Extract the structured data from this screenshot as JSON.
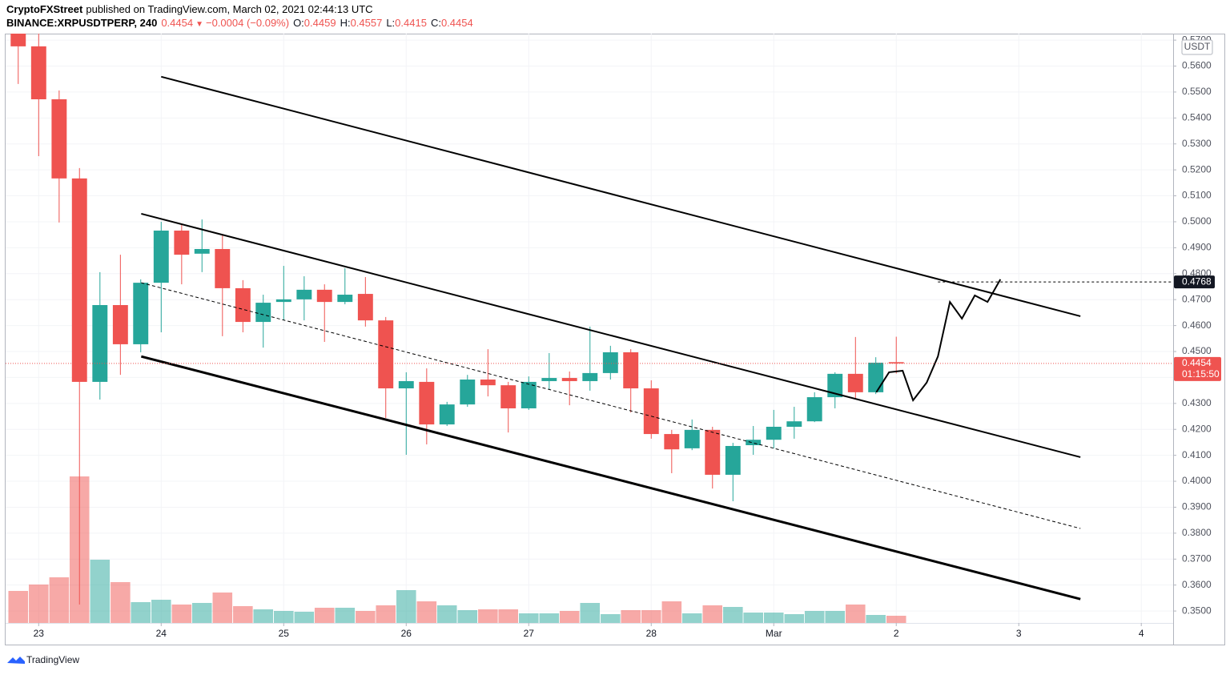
{
  "header": {
    "author": "CryptoFXStreet",
    "published": "published on TradingView.com, March 02, 2021 02:44:13 UTC",
    "symbol": "BINANCE:XRPUSDTPERP, 240",
    "last": "0.4454",
    "arrow": "▼",
    "change": "−0.0004 (−0.09%)",
    "ohlc": [
      {
        "key": "O:",
        "value": "0.4459"
      },
      {
        "key": "H:",
        "value": "0.4557"
      },
      {
        "key": "L:",
        "value": "0.4415"
      },
      {
        "key": "C:",
        "value": "0.4454"
      }
    ]
  },
  "footer": {
    "brand": "TradingView"
  },
  "chart_data": {
    "type": "candlestick",
    "currency": "USDT",
    "up_color": "#26a69a",
    "down_color": "#ef5350",
    "grid": true,
    "x": [
      22.833,
      23,
      23.167,
      23.333,
      23.5,
      23.667,
      23.833,
      24,
      24.167,
      24.333,
      24.5,
      24.667,
      24.833,
      25,
      25.167,
      25.333,
      25.5,
      25.667,
      25.833,
      26,
      26.167,
      26.333,
      26.5,
      26.667,
      26.833,
      27,
      27.167,
      27.333,
      27.5,
      27.667,
      27.833,
      28,
      28.167,
      28.333,
      28.5,
      28.667,
      28.833,
      29,
      29.167,
      29.333,
      29.5,
      29.667,
      29.833,
      30
    ],
    "open": [
      0.575,
      0.5676,
      0.5472,
      0.5167,
      0.4383,
      0.4679,
      0.4528,
      0.4765,
      0.4966,
      0.4877,
      0.4895,
      0.4744,
      0.4614,
      0.4691,
      0.4701,
      0.4738,
      0.4691,
      0.4722,
      0.462,
      0.4358,
      0.4383,
      0.4219,
      0.4296,
      0.4392,
      0.437,
      0.4281,
      0.4386,
      0.4398,
      0.4386,
      0.4417,
      0.4497,
      0.4358,
      0.4182,
      0.4127,
      0.4198,
      0.4025,
      0.4139,
      0.416,
      0.421,
      0.4231,
      0.4324,
      0.4414,
      0.4343,
      0.4459
    ],
    "high": [
      0.578,
      0.573,
      0.5506,
      0.5207,
      0.4806,
      0.4873,
      0.4778,
      0.5,
      0.4991,
      0.5009,
      0.4951,
      0.4775,
      0.4719,
      0.483,
      0.479,
      0.4759,
      0.4821,
      0.4787,
      0.4633,
      0.442,
      0.4435,
      0.4306,
      0.441,
      0.4509,
      0.4383,
      0.4404,
      0.4494,
      0.4423,
      0.4596,
      0.4522,
      0.4509,
      0.4389,
      0.4198,
      0.4238,
      0.421,
      0.4148,
      0.4213,
      0.4275,
      0.4287,
      0.4343,
      0.442,
      0.4556,
      0.4478,
      0.4557
    ],
    "low": [
      0.5531,
      0.5253,
      0.4997,
      0.3525,
      0.4315,
      0.441,
      0.4497,
      0.4574,
      0.4759,
      0.4806,
      0.4559,
      0.4574,
      0.4515,
      0.462,
      0.462,
      0.4537,
      0.4682,
      0.4596,
      0.4244,
      0.4102,
      0.4142,
      0.4213,
      0.4287,
      0.4327,
      0.4188,
      0.4275,
      0.4352,
      0.4293,
      0.4349,
      0.4392,
      0.4265,
      0.4164,
      0.4031,
      0.412,
      0.3972,
      0.3923,
      0.4102,
      0.4127,
      0.4164,
      0.4228,
      0.4281,
      0.4318,
      0.4336,
      0.4415
    ],
    "close": [
      0.5676,
      0.5472,
      0.5167,
      0.4383,
      0.4679,
      0.4528,
      0.4765,
      0.4966,
      0.4873,
      0.4895,
      0.4744,
      0.4614,
      0.4688,
      0.4701,
      0.4738,
      0.4691,
      0.4719,
      0.462,
      0.4358,
      0.4386,
      0.4219,
      0.4296,
      0.4392,
      0.437,
      0.4281,
      0.4383,
      0.4398,
      0.4386,
      0.4417,
      0.4497,
      0.4358,
      0.4182,
      0.4123,
      0.4198,
      0.4025,
      0.4136,
      0.416,
      0.421,
      0.4231,
      0.4324,
      0.4414,
      0.4343,
      0.4457,
      0.4454
    ],
    "volume": [
      40,
      48,
      57,
      183,
      79,
      51,
      26,
      29,
      23,
      25,
      38,
      21,
      17,
      15,
      14,
      19,
      19,
      15,
      22,
      41,
      27,
      22,
      16,
      17,
      17,
      12,
      12,
      15,
      25,
      11,
      16,
      16,
      27,
      12,
      22,
      20,
      13,
      13,
      11,
      15,
      15,
      23,
      10,
      9
    ],
    "vlim": [
      0,
      736
    ],
    "xlim": [
      22.73,
      32.26
    ],
    "xticks": [
      23,
      24,
      25,
      26,
      27,
      28,
      {
        "value": 29,
        "label": "Mar"
      },
      {
        "value": 30,
        "label": "2"
      },
      {
        "value": 31,
        "label": "3"
      },
      {
        "value": 32,
        "label": "4"
      }
    ],
    "ylim": [
      0.3454,
      0.5725
    ],
    "yticks": [
      {
        "value": 0.35,
        "label": "0.3500"
      },
      {
        "value": 0.36,
        "label": "0.3600"
      },
      {
        "value": 0.37,
        "label": "0.3700"
      },
      {
        "value": 0.38,
        "label": "0.3800"
      },
      {
        "value": 0.39,
        "label": "0.3900"
      },
      {
        "value": 0.4,
        "label": "0.4000"
      },
      {
        "value": 0.41,
        "label": "0.4100"
      },
      {
        "value": 0.42,
        "label": "0.4200"
      },
      {
        "value": 0.43,
        "label": "0.4300"
      },
      {
        "value": 0.44,
        "label": "0.4400"
      },
      {
        "value": 0.45,
        "label": "0.4500"
      },
      {
        "value": 0.46,
        "label": "0.4600"
      },
      {
        "value": 0.47,
        "label": "0.4700"
      },
      {
        "value": 0.48,
        "label": "0.4800"
      },
      {
        "value": 0.49,
        "label": "0.4900"
      },
      {
        "value": 0.5,
        "label": "0.5000"
      },
      {
        "value": 0.51,
        "label": "0.5100"
      },
      {
        "value": 0.52,
        "label": "0.5200"
      },
      {
        "value": 0.53,
        "label": "0.5300"
      },
      {
        "value": 0.54,
        "label": "0.5400"
      },
      {
        "value": 0.55,
        "label": "0.5500"
      },
      {
        "value": 0.56,
        "label": "0.5600"
      },
      {
        "value": 0.57,
        "label": "0.5700"
      }
    ],
    "trendlines": [
      {
        "style": "solid",
        "width": 2,
        "points": [
          [
            24.0,
            0.5559
          ],
          [
            31.503,
            0.4636
          ]
        ]
      },
      {
        "style": "solid",
        "width": 2,
        "points": [
          [
            23.837,
            0.5031
          ],
          [
            31.503,
            0.4093
          ]
        ]
      },
      {
        "style": "dashed",
        "width": 1,
        "points": [
          [
            23.837,
            0.4765
          ],
          [
            31.503,
            0.3818
          ]
        ]
      },
      {
        "style": "solid",
        "width": 3,
        "points": [
          [
            23.837,
            0.4481
          ],
          [
            31.503,
            0.3546
          ]
        ]
      }
    ],
    "projection": {
      "x": [
        29.837,
        29.941,
        30.052,
        30.137,
        30.248,
        30.34,
        30.438,
        30.536,
        30.641,
        30.745,
        30.85
      ],
      "y": [
        0.4343,
        0.442,
        0.4426,
        0.4312,
        0.438,
        0.4481,
        0.4691,
        0.4627,
        0.4716,
        0.4691,
        0.4778
      ]
    },
    "level": {
      "value": 0.4768,
      "from": 30.34
    },
    "last_price": {
      "value": 0.4454,
      "countdown": "01:15:50"
    }
  }
}
